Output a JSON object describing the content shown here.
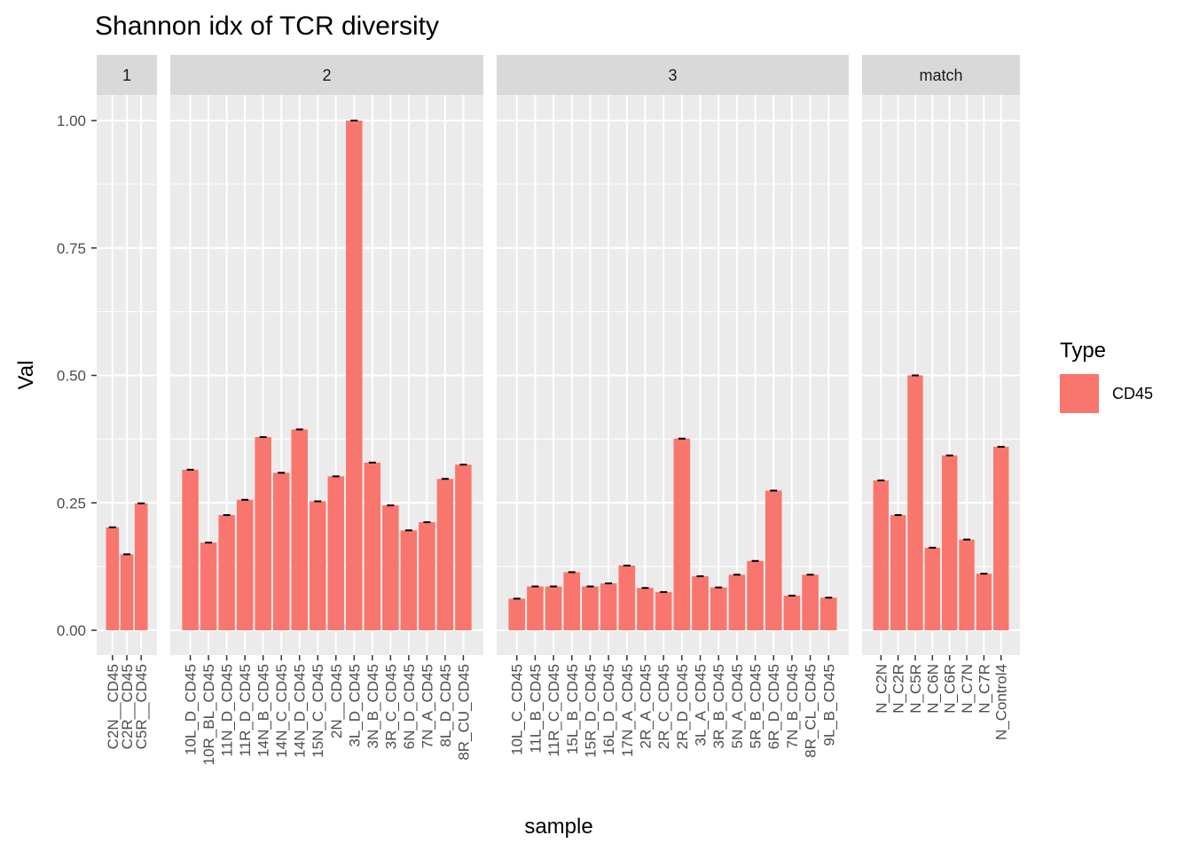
{
  "chart_data": {
    "type": "bar",
    "title": "Shannon idx of TCR diversity",
    "xlabel": "sample",
    "ylabel": "Val",
    "ylim": [
      -0.045,
      1.1
    ],
    "yticks": [
      0.0,
      0.25,
      0.5,
      0.75,
      1.0
    ],
    "ytick_labels": [
      "0.00",
      "0.25",
      "0.50",
      "0.75",
      "1.00"
    ],
    "grid": true,
    "legend": {
      "title": "Type",
      "position": "right",
      "entries": [
        {
          "name": "CD45",
          "color": "#F8766D"
        }
      ]
    },
    "bar_color": "#F8766D",
    "errorbar_color": "#000000",
    "panel_background": "#EBEBEB",
    "strip_background": "#D9D9D9",
    "facets": [
      {
        "label": "1",
        "categories": [
          "C2N__CD45",
          "C2R__CD45",
          "C5R__CD45"
        ],
        "values": [
          0.202,
          0.149,
          0.249
        ]
      },
      {
        "label": "2",
        "categories": [
          "10L_D_CD45",
          "10R_BL_CD45",
          "11N_D_CD45",
          "11R_D_CD45",
          "14N_B_CD45",
          "14N_C_CD45",
          "14N_D_CD45",
          "15N_C_CD45",
          "2N__CD45",
          "3L_D_CD45",
          "3N_B_CD45",
          "3R_C_CD45",
          "6N_D_CD45",
          "7N_A_CD45",
          "8L_D_CD45",
          "8R_CU_CD45"
        ],
        "values": [
          0.315,
          0.172,
          0.226,
          0.256,
          0.379,
          0.309,
          0.394,
          0.253,
          0.302,
          1.0,
          0.329,
          0.245,
          0.196,
          0.212,
          0.297,
          0.325
        ]
      },
      {
        "label": "3",
        "categories": [
          "10L_C_CD45",
          "11L_B_CD45",
          "11R_C_CD45",
          "15L_B_CD45",
          "15R_D_CD45",
          "16L_D_CD45",
          "17N_A_CD45",
          "2R_A_CD45",
          "2R_C_CD45",
          "2R_D_CD45",
          "3L_A_CD45",
          "3R_B_CD45",
          "5N_A_CD45",
          "5R_B_CD45",
          "6R_D_CD45",
          "7N_B_CD45",
          "8R_CL_CD45",
          "9L_B_CD45"
        ],
        "values": [
          0.062,
          0.086,
          0.086,
          0.114,
          0.086,
          0.092,
          0.127,
          0.083,
          0.075,
          0.376,
          0.106,
          0.084,
          0.109,
          0.136,
          0.274,
          0.068,
          0.109,
          0.064
        ]
      },
      {
        "label": "match",
        "categories": [
          "N_C2N",
          "N_C2R",
          "N_C5R",
          "N_C6N",
          "N_C6R",
          "N_C7N",
          "N_C7R",
          "N_Control4"
        ],
        "values": [
          0.294,
          0.226,
          0.5,
          0.162,
          0.343,
          0.178,
          0.111,
          0.36
        ]
      }
    ]
  }
}
